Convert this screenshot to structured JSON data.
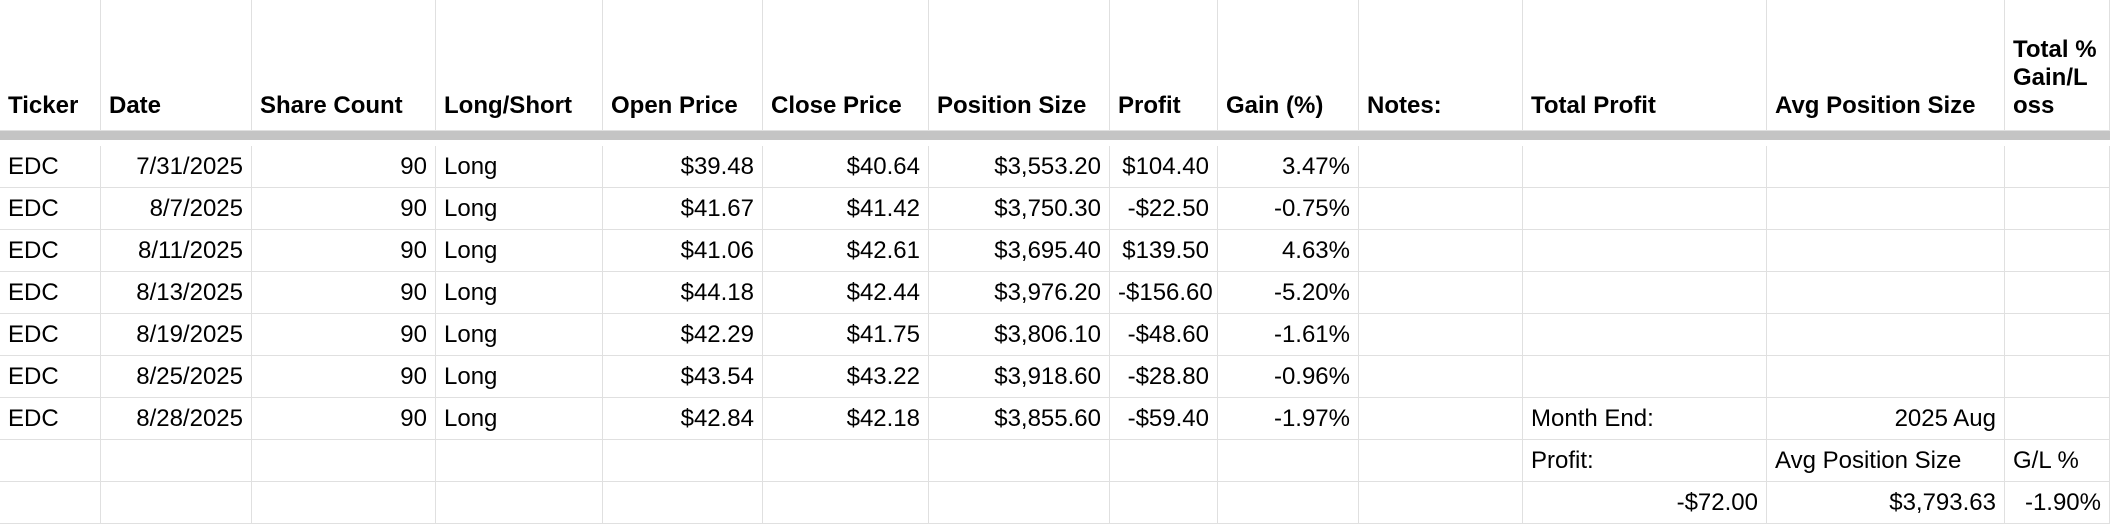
{
  "table": {
    "headers": [
      "Ticker",
      "Date",
      "Share Count",
      "Long/Short",
      "Open Price",
      "Close Price",
      "Position Size",
      "Profit",
      "Gain (%)",
      "Notes:",
      "Total Profit",
      "Avg Position Size",
      "Total % Gain/Loss"
    ],
    "rows": [
      [
        "EDC",
        "7/31/2025",
        "90",
        "Long",
        "$39.48",
        "$40.64",
        "$3,553.20",
        "$104.40",
        "3.47%"
      ],
      [
        "EDC",
        "8/7/2025",
        "90",
        "Long",
        "$41.67",
        "$41.42",
        "$3,750.30",
        "-$22.50",
        "-0.75%"
      ],
      [
        "EDC",
        "8/11/2025",
        "90",
        "Long",
        "$41.06",
        "$42.61",
        "$3,695.40",
        "$139.50",
        "4.63%"
      ],
      [
        "EDC",
        "8/13/2025",
        "90",
        "Long",
        "$44.18",
        "$42.44",
        "$3,976.20",
        "-$156.60",
        "-5.20%"
      ],
      [
        "EDC",
        "8/19/2025",
        "90",
        "Long",
        "$42.29",
        "$41.75",
        "$3,806.10",
        "-$48.60",
        "-1.61%"
      ],
      [
        "EDC",
        "8/25/2025",
        "90",
        "Long",
        "$43.54",
        "$43.22",
        "$3,918.60",
        "-$28.80",
        "-0.96%"
      ],
      [
        "EDC",
        "8/28/2025",
        "90",
        "Long",
        "$42.84",
        "$42.18",
        "$3,855.60",
        "-$59.40",
        "-1.97%"
      ]
    ],
    "summary": {
      "month_end_label": "Month End:",
      "month_end_value": "2025 Aug",
      "profit_label": "Profit:",
      "avg_label": "Avg Position Size",
      "gl_label": "G/L %",
      "profit": "-$72.00",
      "avg": "$3,793.63",
      "gl": "-1.90%"
    }
  }
}
